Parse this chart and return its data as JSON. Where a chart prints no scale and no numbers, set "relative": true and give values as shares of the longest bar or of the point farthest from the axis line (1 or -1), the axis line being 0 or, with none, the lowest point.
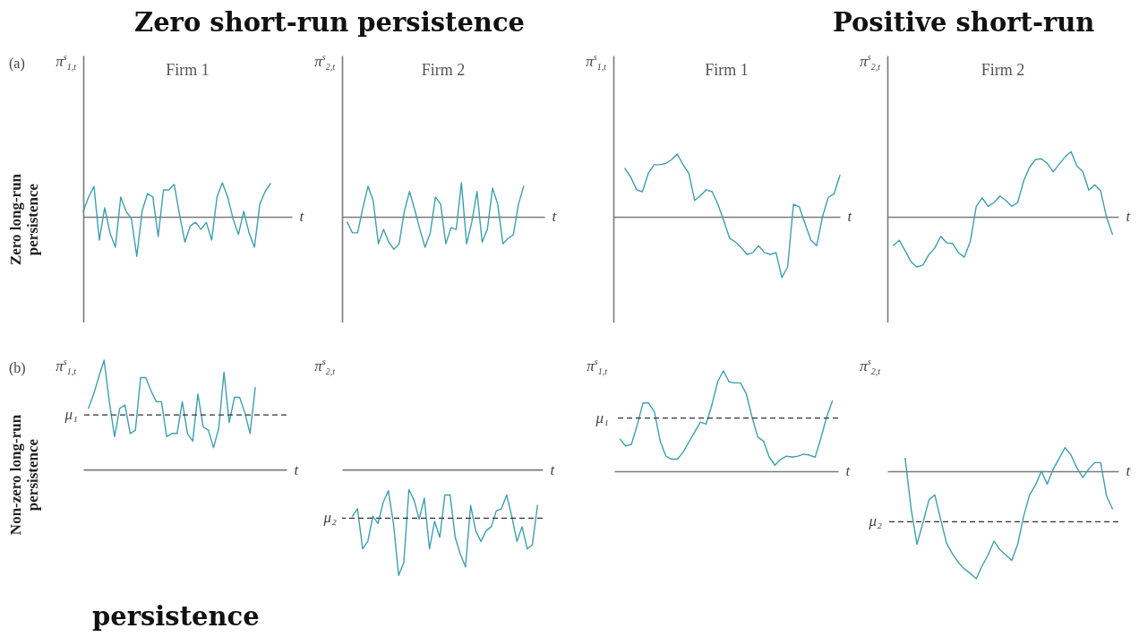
{
  "chart_data": [
    {
      "type": "line",
      "title": "Firm 1",
      "ylabel": "π$^{s}$$_{1,t}$",
      "xlabel": "t",
      "relative": true,
      "annotations": [
        "Zero short-run persistence",
        "(a)",
        "Zero long-run persistence"
      ],
      "categories": [
        null,
        null,
        null,
        null,
        null,
        null,
        null,
        null,
        null,
        null,
        null,
        null,
        null,
        null,
        null,
        null,
        null,
        null,
        null,
        null,
        null,
        null,
        null,
        null,
        null,
        null,
        null,
        null,
        null,
        null,
        null,
        null,
        null,
        null,
        null,
        null,
        null,
        null,
        null,
        null
      ],
      "series": [
        {
          "color": "#3f9fae",
          "values": [
            0.14,
            0.5,
            0.77,
            -0.59,
            0.23,
            -0.41,
            -0.77,
            0.5,
            0.14,
            -0.05,
            -1,
            0.14,
            0.59,
            0.5,
            -0.5,
            0.68,
            0.68,
            0.82,
            0.05,
            -0.64,
            -0.23,
            -0.14,
            -0.32,
            -0.14,
            -0.59,
            0.5,
            0.86,
            0.5,
            -0.05,
            -0.45,
            0.14,
            -0.41,
            -0.77,
            0.32,
            0.64,
            0.84,
            null,
            null,
            null,
            null
          ]
        }
      ]
    },
    {
      "type": "line",
      "title": "Firm 2",
      "ylabel": "π$^{s}$$_{2,t}$",
      "xlabel": "t",
      "relative": true,
      "categories": [
        null,
        null,
        null,
        null,
        null,
        null,
        null,
        null,
        null,
        null,
        null,
        null,
        null,
        null,
        null,
        null,
        null,
        null,
        null,
        null,
        null,
        null,
        null,
        null,
        null,
        null,
        null,
        null,
        null,
        null,
        null,
        null,
        null,
        null,
        null,
        null,
        null,
        null,
        null,
        null
      ],
      "series": [
        {
          "color": "#3f9fae",
          "values": [
            null,
            -0.16,
            -0.47,
            -0.47,
            0.26,
            0.89,
            0.47,
            -0.79,
            -0.37,
            -0.74,
            -0.95,
            -0.79,
            0.16,
            0.74,
            0.21,
            -0.37,
            -0.89,
            -0.47,
            0.58,
            0.37,
            -0.79,
            -0.32,
            -0.37,
            1,
            -0.79,
            -0.16,
            0.74,
            -0.74,
            -0.37,
            0.84,
            0.37,
            -0.79,
            -0.63,
            -0.53,
            0.37,
            0.89,
            null,
            null,
            null,
            null
          ]
        }
      ]
    },
    {
      "type": "line",
      "title": "Firm 1",
      "ylabel": "π$^{s}$$_{1,t}$",
      "xlabel": "t",
      "relative": true,
      "annotations": [
        "Positive short-run",
        "persistence"
      ],
      "categories": [
        null,
        null,
        null,
        null,
        null,
        null,
        null,
        null,
        null,
        null,
        null,
        null,
        null,
        null,
        null,
        null,
        null,
        null,
        null,
        null,
        null,
        null,
        null,
        null,
        null,
        null,
        null,
        null,
        null,
        null,
        null,
        null,
        null,
        null,
        null,
        null,
        null,
        null,
        null,
        null
      ],
      "series": [
        {
          "color": "#3f9fae",
          "values": [
            null,
            null,
            0.77,
            0.63,
            0.43,
            0.4,
            0.69,
            0.83,
            0.83,
            0.85,
            0.91,
            1,
            0.83,
            0.69,
            0.26,
            0.34,
            0.43,
            0.4,
            0.2,
            -0.06,
            -0.34,
            -0.4,
            -0.49,
            -0.6,
            -0.57,
            -0.46,
            -0.57,
            -0.6,
            -0.57,
            -0.97,
            -0.8,
            0.2,
            0.16,
            -0.11,
            -0.37,
            -0.46,
            0,
            0.31,
            0.37,
            0.66
          ]
        }
      ]
    },
    {
      "type": "line",
      "title": "Firm 2",
      "ylabel": "π$^{s}$$_{2,t}$",
      "xlabel": "t",
      "relative": true,
      "categories": [
        null,
        null,
        null,
        null,
        null,
        null,
        null,
        null,
        null,
        null,
        null,
        null,
        null,
        null,
        null,
        null,
        null,
        null,
        null,
        null,
        null,
        null,
        null,
        null,
        null,
        null,
        null,
        null,
        null,
        null,
        null,
        null,
        null,
        null,
        null,
        null,
        null,
        null,
        null,
        null
      ],
      "series": [
        {
          "color": "#3f9fae",
          "values": [
            null,
            -0.44,
            -0.36,
            -0.52,
            -0.69,
            -0.77,
            -0.74,
            -0.58,
            -0.48,
            -0.3,
            -0.4,
            -0.41,
            -0.55,
            -0.62,
            -0.38,
            0.16,
            0.29,
            0.16,
            0.22,
            0.32,
            0.25,
            0.16,
            0.22,
            0.55,
            0.76,
            0.88,
            0.89,
            0.82,
            0.69,
            0.81,
            0.92,
            1,
            0.78,
            0.69,
            0.41,
            0.49,
            0.4,
            -0.01,
            -0.27,
            null
          ]
        }
      ]
    },
    {
      "type": "line",
      "ylabel": "π$^{s}$$_{1,t}$",
      "xlabel": "t",
      "relative": true,
      "annotations": [
        "(b)",
        "Non-zero long-run persistence"
      ],
      "categories": [
        null,
        null,
        null,
        null,
        null,
        null,
        null,
        null,
        null,
        null,
        null,
        null,
        null,
        null,
        null,
        null,
        null,
        null,
        null,
        null,
        null,
        null,
        null,
        null,
        null,
        null,
        null,
        null,
        null,
        null,
        null,
        null,
        null,
        null,
        null,
        null,
        null,
        null,
        null,
        null
      ],
      "series": [
        {
          "color": "#3f9fae",
          "values": [
            null,
            0.56,
            0.69,
            0.85,
            1,
            0.62,
            0.3,
            0.56,
            0.59,
            0.33,
            0.36,
            0.84,
            0.84,
            0.72,
            0.62,
            0.62,
            0.3,
            0.33,
            0.33,
            0.62,
            0.33,
            0.26,
            0.69,
            0.39,
            0.36,
            0.2,
            0.38,
            0.89,
            0.43,
            0.66,
            0.66,
            0.52,
            0.33,
            0.75,
            null,
            null,
            null,
            null,
            null,
            null
          ]
        }
      ],
      "ref_lines": [
        {
          "axis": "y",
          "value": 0.5,
          "label": "μ₁",
          "color": "#333333",
          "line_style": "dashed"
        }
      ]
    },
    {
      "type": "line",
      "ylabel": "π$^{s}$$_{2,t}$",
      "xlabel": "t",
      "relative": true,
      "categories": [
        null,
        null,
        null,
        null,
        null,
        null,
        null,
        null,
        null,
        null,
        null,
        null,
        null,
        null,
        null,
        null,
        null,
        null,
        null,
        null,
        null,
        null,
        null,
        null,
        null,
        null,
        null,
        null,
        null,
        null,
        null,
        null,
        null,
        null,
        null,
        null,
        null,
        null,
        null,
        null
      ],
      "series": [
        {
          "color": "#3f9fae",
          "values": [
            null,
            null,
            -0.44,
            -0.37,
            -0.75,
            -0.68,
            -0.44,
            -0.51,
            -0.31,
            -0.2,
            -0.51,
            -1,
            -0.88,
            -0.19,
            -0.29,
            -0.47,
            -0.27,
            -0.75,
            -0.49,
            -0.64,
            -0.24,
            -0.24,
            -0.64,
            -0.8,
            -0.92,
            -0.34,
            -0.58,
            -0.68,
            -0.58,
            -0.54,
            -0.39,
            -0.37,
            -0.24,
            -0.44,
            -0.68,
            -0.54,
            -0.75,
            -0.71,
            -0.34,
            null
          ]
        }
      ],
      "ref_lines": [
        {
          "axis": "y",
          "value": -0.46,
          "label": "μ₂",
          "color": "#333333",
          "line_style": "dashed"
        }
      ]
    },
    {
      "type": "line",
      "ylabel": "π$^{s}$$_{1,t}$",
      "xlabel": "t",
      "relative": true,
      "categories": [
        null,
        null,
        null,
        null,
        null,
        null,
        null,
        null,
        null,
        null,
        null,
        null,
        null,
        null,
        null,
        null,
        null,
        null,
        null,
        null,
        null,
        null,
        null,
        null,
        null,
        null,
        null,
        null,
        null,
        null,
        null,
        null,
        null,
        null,
        null,
        null,
        null,
        null,
        null,
        null
      ],
      "series": [
        {
          "color": "#3f9fae",
          "values": [
            null,
            0.32,
            0.25,
            0.27,
            0.46,
            0.68,
            0.68,
            0.59,
            0.3,
            0.15,
            0.12,
            0.12,
            0.19,
            0.29,
            0.39,
            0.49,
            0.47,
            0.66,
            0.89,
            1,
            0.89,
            0.88,
            0.88,
            0.77,
            0.54,
            0.34,
            0.3,
            0.14,
            0.06,
            0.12,
            0.15,
            0.14,
            0.15,
            0.17,
            0.16,
            0.14,
            0.33,
            0.54,
            0.7,
            null
          ]
        }
      ],
      "ref_lines": [
        {
          "axis": "y",
          "value": 0.53,
          "label": "μ₁",
          "color": "#333333",
          "line_style": "dashed"
        }
      ]
    },
    {
      "type": "line",
      "ylabel": "π$^{s}$$_{2,t}$",
      "xlabel": "t",
      "relative": true,
      "categories": [
        null,
        null,
        null,
        null,
        null,
        null,
        null,
        null,
        null,
        null,
        null,
        null,
        null,
        null,
        null,
        null,
        null,
        null,
        null,
        null,
        null,
        null,
        null,
        null,
        null,
        null,
        null,
        null,
        null,
        null,
        null,
        null,
        null,
        null,
        null,
        null,
        null,
        null,
        null,
        null
      ],
      "series": [
        {
          "color": "#3f9fae",
          "values": [
            null,
            null,
            null,
            0.12,
            -0.35,
            -0.68,
            -0.48,
            -0.27,
            -0.22,
            -0.45,
            -0.67,
            -0.77,
            -0.85,
            -0.91,
            -0.95,
            -1,
            -0.88,
            -0.78,
            -0.65,
            -0.73,
            -0.78,
            -0.83,
            -0.68,
            -0.42,
            -0.22,
            -0.13,
            0,
            -0.12,
            0.02,
            0.12,
            0.22,
            0.15,
            0.03,
            -0.06,
            0.02,
            0.08,
            0.08,
            -0.23,
            -0.35,
            null
          ]
        }
      ],
      "ref_lines": [
        {
          "axis": "y",
          "value": -0.47,
          "label": "μ₂",
          "color": "#333333",
          "line_style": "dashed"
        }
      ]
    }
  ]
}
